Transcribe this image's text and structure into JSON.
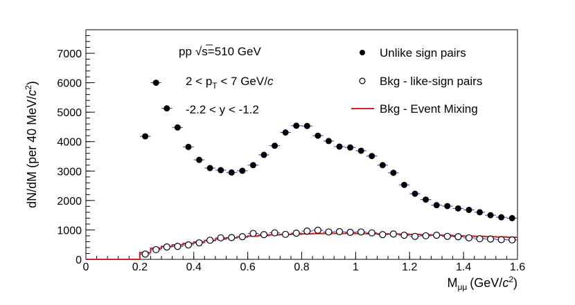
{
  "chart_data": {
    "type": "scatter",
    "title": "",
    "xlabel": {
      "main": "M",
      "sub": "μμ",
      "unit_pre": "(GeV/",
      "unit_c": "c",
      "unit_sup": "2",
      "unit_post": ")"
    },
    "ylabel": {
      "pre": "dN/dM (per 40 MeV/",
      "c": "c",
      "sup": "2",
      "post": ")"
    },
    "xlim": [
      0,
      1.6
    ],
    "ylim": [
      0,
      7800
    ],
    "x_ticks": [
      0,
      0.2,
      0.4,
      0.6,
      0.8,
      1,
      1.2,
      1.4,
      1.6
    ],
    "x_tick_labels": [
      "0",
      "0.2",
      "0.4",
      "0.6",
      "0.8",
      "1",
      "1.2",
      "1.4",
      "1.6"
    ],
    "y_ticks": [
      0,
      1000,
      2000,
      3000,
      4000,
      5000,
      6000,
      7000
    ],
    "y_tick_labels": [
      "0",
      "1000",
      "2000",
      "3000",
      "4000",
      "5000",
      "6000",
      "7000"
    ],
    "annotations": {
      "energy": {
        "pp": "pp",
        "sqrt_s": "s",
        "rest": "=510 GeV"
      },
      "pt": {
        "pre": "2 < p",
        "sub": "T",
        "post": " < 7 GeV/",
        "c": "c"
      },
      "rapidity": "-2.2 < y < -1.2"
    },
    "legend": {
      "placement": "top-right",
      "entries": [
        "Unlike sign pairs",
        "Bkg - like-sign pairs",
        "Bkg - Event Mixing"
      ]
    },
    "series": [
      {
        "name": "Unlike sign pairs",
        "marker": "filled-circle",
        "color": "#000000",
        "x": [
          0.22,
          0.26,
          0.3,
          0.34,
          0.38,
          0.42,
          0.46,
          0.5,
          0.54,
          0.58,
          0.62,
          0.66,
          0.7,
          0.74,
          0.78,
          0.82,
          0.86,
          0.9,
          0.94,
          0.98,
          1.02,
          1.06,
          1.1,
          1.14,
          1.18,
          1.22,
          1.26,
          1.3,
          1.34,
          1.38,
          1.42,
          1.46,
          1.5,
          1.54,
          1.58
        ],
        "y": [
          4180,
          6000,
          5130,
          4480,
          3820,
          3380,
          3100,
          3030,
          2950,
          3010,
          3200,
          3550,
          3860,
          4310,
          4540,
          4530,
          4200,
          4020,
          3830,
          3800,
          3690,
          3510,
          3200,
          2940,
          2530,
          2230,
          2030,
          1840,
          1810,
          1730,
          1680,
          1600,
          1500,
          1430,
          1400
        ]
      },
      {
        "name": "Bkg - like-sign pairs",
        "marker": "open-circle",
        "color": "#000000",
        "x": [
          0.22,
          0.26,
          0.3,
          0.34,
          0.38,
          0.42,
          0.46,
          0.5,
          0.54,
          0.58,
          0.62,
          0.66,
          0.7,
          0.74,
          0.78,
          0.82,
          0.86,
          0.9,
          0.94,
          0.98,
          1.02,
          1.06,
          1.1,
          1.14,
          1.18,
          1.22,
          1.26,
          1.3,
          1.34,
          1.38,
          1.42,
          1.46,
          1.5,
          1.54,
          1.58
        ],
        "y": [
          180,
          330,
          420,
          440,
          490,
          560,
          650,
          730,
          740,
          770,
          880,
          840,
          900,
          850,
          890,
          960,
          990,
          930,
          940,
          920,
          930,
          900,
          840,
          860,
          820,
          780,
          800,
          820,
          780,
          770,
          730,
          700,
          690,
          670,
          660
        ]
      },
      {
        "name": "Bkg - Event Mixing",
        "type": "step",
        "color": "#d62020",
        "edges": [
          0,
          0.2,
          0.24,
          0.28,
          0.32,
          0.36,
          0.4,
          0.44,
          0.48,
          0.52,
          0.56,
          0.6,
          0.64,
          0.68,
          0.72,
          0.76,
          0.8,
          0.84,
          0.88,
          0.92,
          0.96,
          1.0,
          1.04,
          1.08,
          1.12,
          1.16,
          1.2,
          1.24,
          1.28,
          1.32,
          1.36,
          1.4,
          1.44,
          1.48,
          1.52,
          1.56,
          1.6
        ],
        "values": [
          0,
          230,
          380,
          440,
          490,
          540,
          590,
          640,
          690,
          730,
          760,
          790,
          810,
          830,
          845,
          855,
          865,
          875,
          880,
          880,
          880,
          875,
          870,
          865,
          860,
          855,
          845,
          835,
          825,
          815,
          800,
          790,
          780,
          770,
          760,
          750
        ]
      }
    ]
  }
}
